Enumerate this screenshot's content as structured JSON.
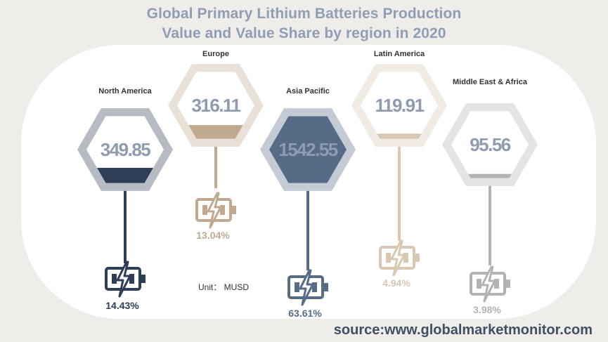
{
  "title": {
    "line1": "Global Primary Lithium Batteries Production",
    "line2": "Value  and Value Share by region in 2020"
  },
  "unit_label": "Unit： MUSD",
  "source": "source:www.globalmarketmonitor.com",
  "colors": {
    "north_america": "#2d3e56",
    "europe": "#c0a98f",
    "asia_pacific": "#566b86",
    "latin_america": "#d8c7b1",
    "middle_east_africa": "#b3b3b3"
  },
  "chart_data": {
    "type": "bar",
    "title": "Global Primary Lithium Batteries Production Value  and Value Share by region in 2020",
    "unit": "MUSD",
    "categories": [
      "North America",
      "Europe",
      "Asia Pacific",
      "Latin America",
      "Middle East & Africa"
    ],
    "values": [
      349.85,
      316.11,
      1542.55,
      119.91,
      95.56
    ],
    "value_labels": [
      "349.85",
      "316.11",
      "1542.55",
      "119.91",
      "95.56"
    ],
    "shares": [
      14.43,
      13.04,
      63.61,
      4.94,
      3.98
    ],
    "share_labels": [
      "14.43%",
      "13.04%",
      "63.61%",
      "4.94%",
      "3.98%"
    ],
    "vmax": 1542.55
  }
}
